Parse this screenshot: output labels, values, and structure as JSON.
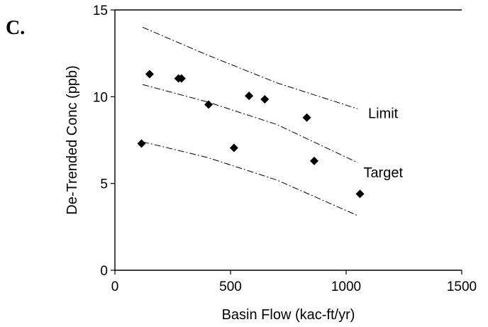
{
  "chart_data": {
    "type": "scatter",
    "panel_label": "C.",
    "xlabel": "Basin Flow (kac-ft/yr)",
    "ylabel": "De-Trended Conc (ppb)",
    "xlim": [
      0,
      1500
    ],
    "ylim": [
      0,
      15
    ],
    "x_ticks": [
      0,
      500,
      1000,
      1500
    ],
    "y_ticks": [
      0,
      5,
      10,
      15
    ],
    "grid": false,
    "colors": {
      "points": "#000000",
      "lines": "#000000",
      "axes": "#000000"
    },
    "points": [
      {
        "x": 115,
        "y": 7.3
      },
      {
        "x": 150,
        "y": 11.3
      },
      {
        "x": 275,
        "y": 11.05
      },
      {
        "x": 288,
        "y": 11.05
      },
      {
        "x": 405,
        "y": 9.55
      },
      {
        "x": 515,
        "y": 7.05
      },
      {
        "x": 580,
        "y": 10.05
      },
      {
        "x": 648,
        "y": 9.85
      },
      {
        "x": 830,
        "y": 8.8
      },
      {
        "x": 862,
        "y": 6.3
      },
      {
        "x": 1060,
        "y": 4.4
      }
    ],
    "lines": [
      {
        "label": "Limit",
        "style": "dash-dot",
        "points": [
          [
            120,
            14.0
          ],
          [
            400,
            12.4
          ],
          [
            700,
            10.8
          ],
          [
            1050,
            9.3
          ]
        ]
      },
      {
        "label": "Target",
        "style": "dash-dot",
        "points": [
          [
            120,
            10.7
          ],
          [
            400,
            9.7
          ],
          [
            700,
            8.4
          ],
          [
            1050,
            6.2
          ]
        ]
      },
      {
        "label": "",
        "style": "dash-dot",
        "points": [
          [
            120,
            7.4
          ],
          [
            400,
            6.5
          ],
          [
            700,
            5.2
          ],
          [
            1050,
            3.15
          ]
        ]
      }
    ],
    "annotations": [
      {
        "text": "Limit",
        "x": 1095,
        "y": 9.05
      },
      {
        "text": "Target",
        "x": 1075,
        "y": 5.65
      }
    ]
  }
}
